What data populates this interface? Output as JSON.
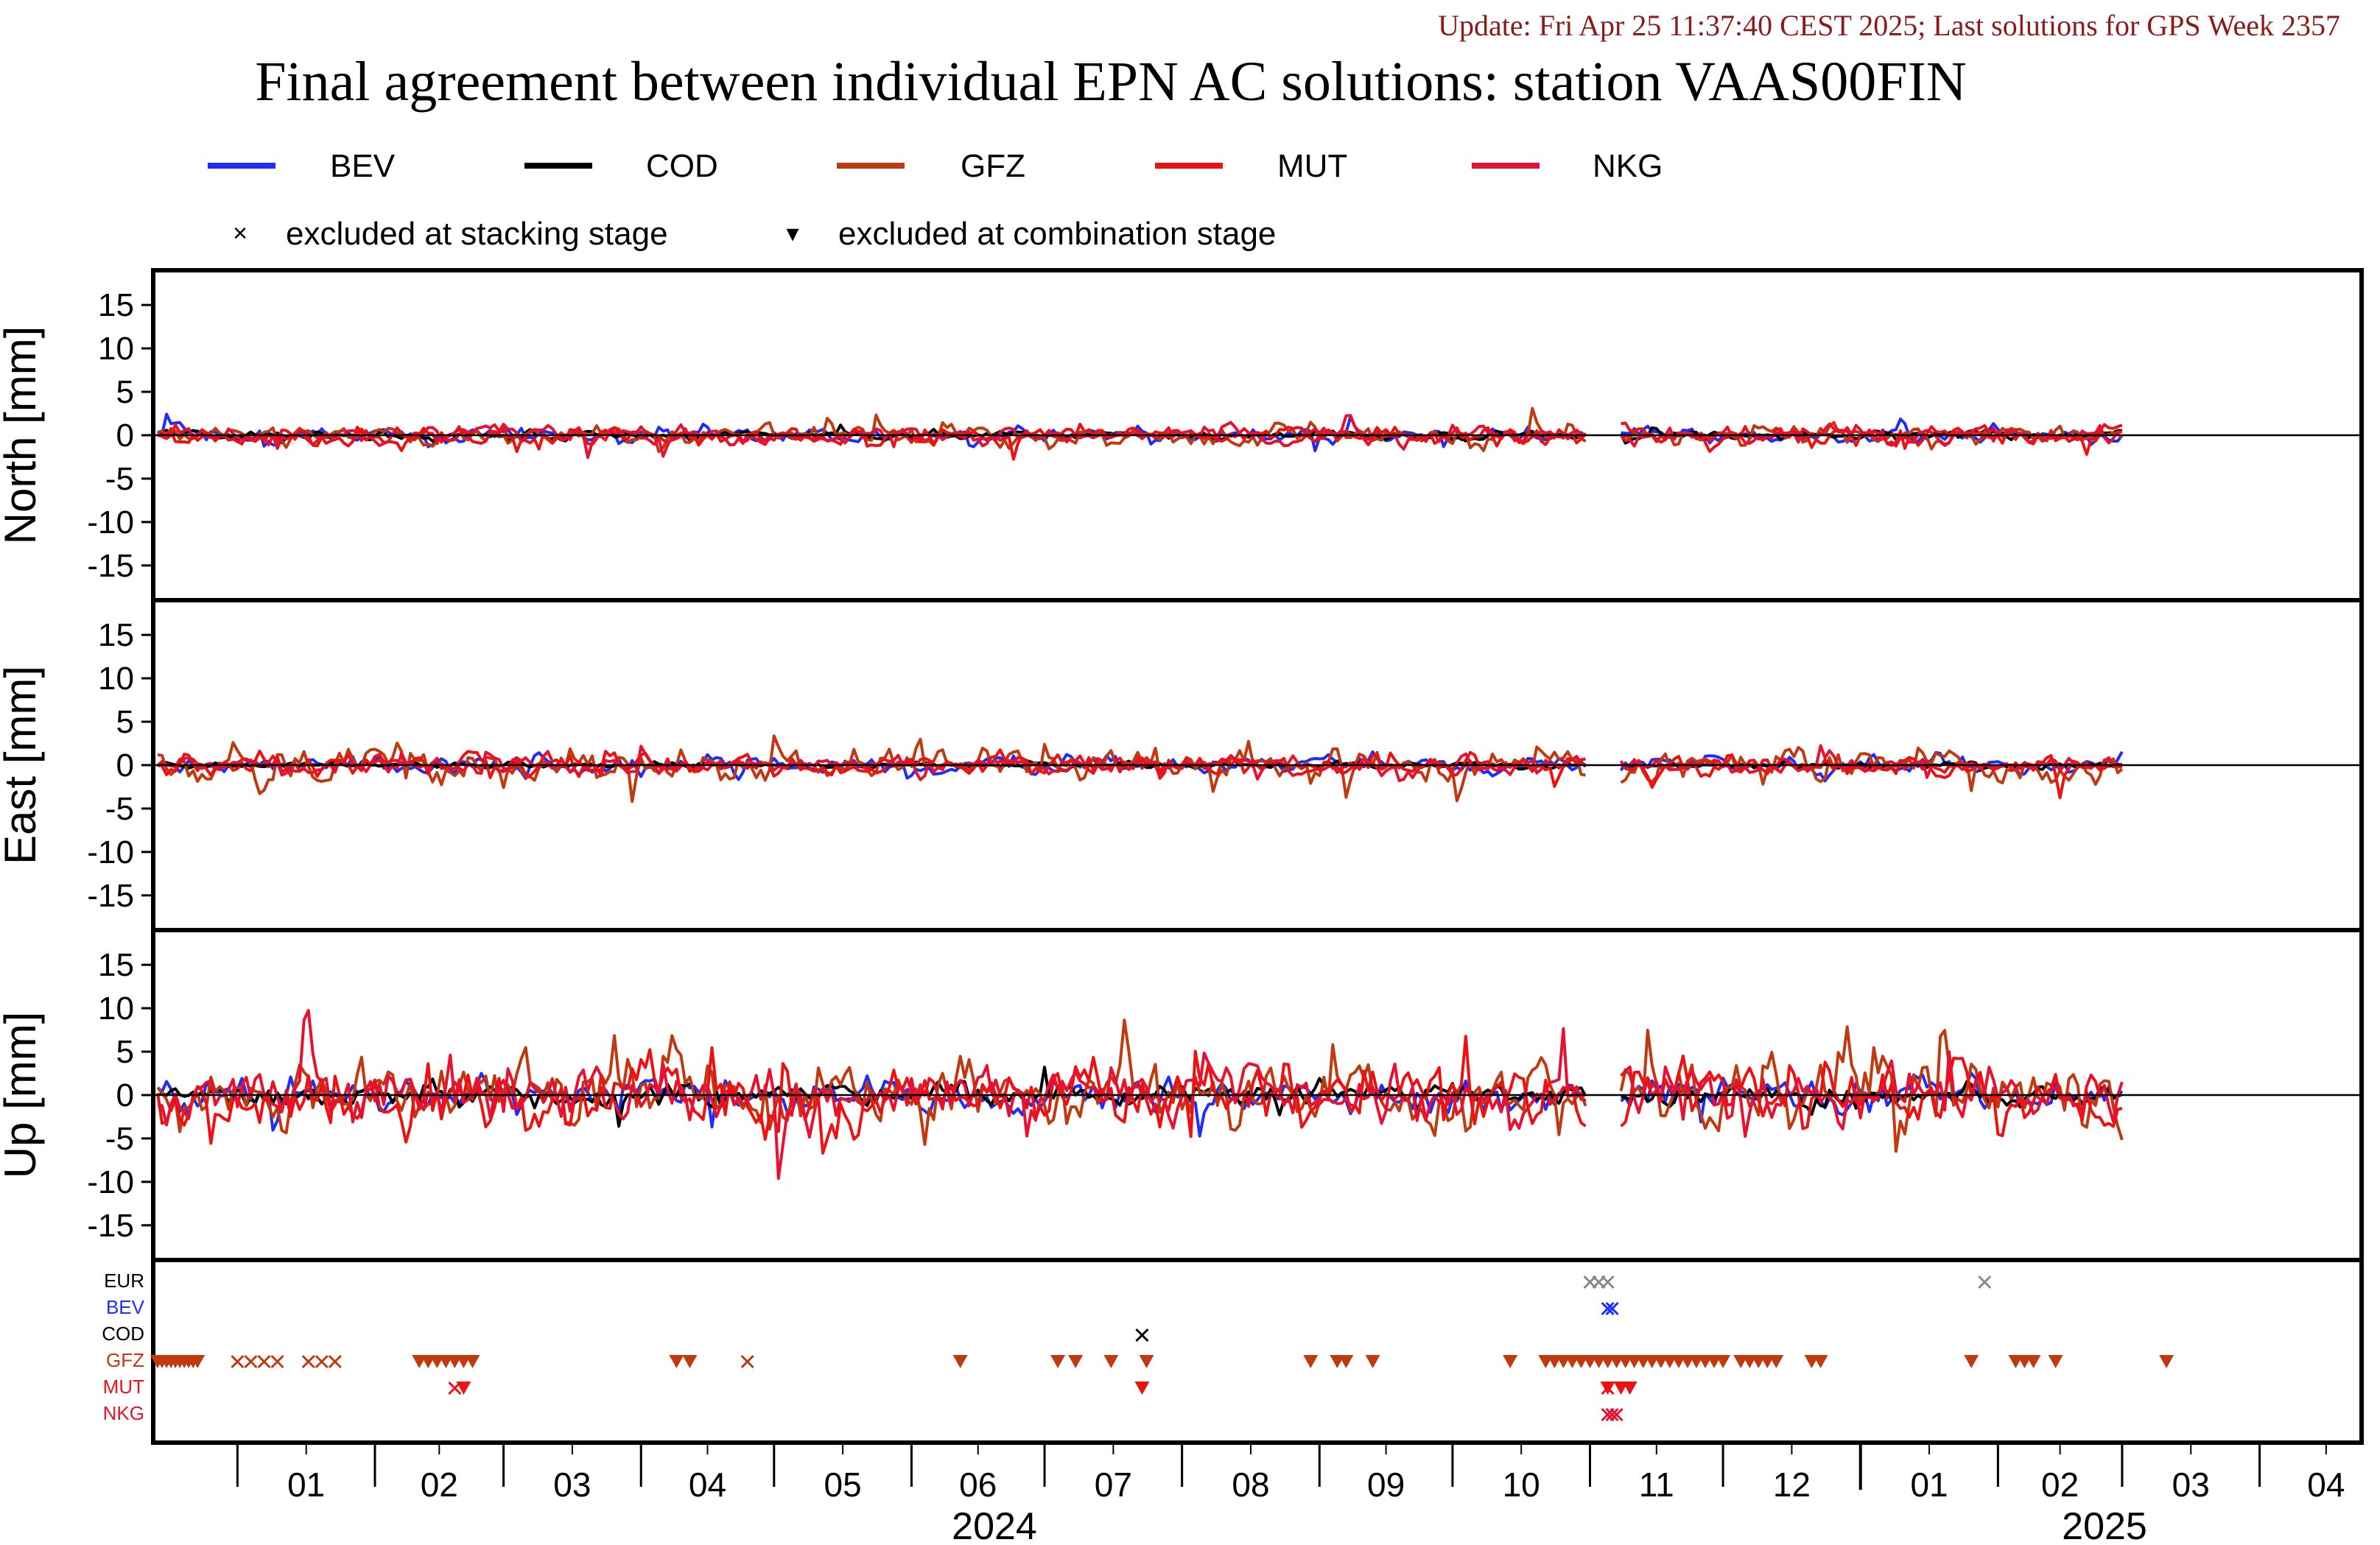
{
  "header": {
    "update": "Update: Fri Apr 25 11:37:40 CEST 2025; Last solutions for GPS Week 2357",
    "title": "Final agreement between individual EPN AC solutions: station VAAS00FIN"
  },
  "legend": {
    "series": [
      {
        "name": "BEV",
        "color": "#1f2bff"
      },
      {
        "name": "COD",
        "color": "#000000"
      },
      {
        "name": "GFZ",
        "color": "#c0390f"
      },
      {
        "name": "MUT",
        "color": "#ee1111"
      },
      {
        "name": "NKG",
        "color": "#e8112f"
      }
    ],
    "markers": [
      {
        "symbol": "×",
        "label": "excluded at stacking stage"
      },
      {
        "symbol": "▾",
        "label": "excluded at combination stage"
      }
    ]
  },
  "chart_data": {
    "type": "line",
    "x_type": "date",
    "xlim": [
      "2023-12-13",
      "2025-04-24"
    ],
    "data_end": "2025-03-01",
    "gap": [
      "2024-11-01",
      "2024-11-08"
    ],
    "panels": [
      {
        "key": "north",
        "ylabel": "North [mm]",
        "ylim": [
          -19,
          19
        ],
        "yticks": [
          15,
          10,
          5,
          0,
          -5,
          -10,
          -15
        ],
        "typical_spread_mm": {
          "BEV": 0.7,
          "COD": 0.4,
          "GFZ": 0.9,
          "MUT": 0.9,
          "NKG": 0.8
        }
      },
      {
        "key": "east",
        "ylabel": "East [mm]",
        "ylim": [
          -19,
          19
        ],
        "yticks": [
          15,
          10,
          5,
          0,
          -5,
          -10,
          -15
        ],
        "typical_spread_mm": {
          "BEV": 0.8,
          "COD": 0.3,
          "GFZ": 1.6,
          "MUT": 1.0,
          "NKG": 0.8
        }
      },
      {
        "key": "up",
        "ylabel": "Up [mm]",
        "ylim": [
          -19,
          19
        ],
        "yticks": [
          15,
          10,
          5,
          0,
          -5,
          -10,
          -15
        ],
        "typical_spread_mm": {
          "BEV": 1.6,
          "COD": 1.1,
          "GFZ": 3.0,
          "MUT": 3.0,
          "NKG": 2.6
        }
      }
    ],
    "exclusions": {
      "rows": [
        {
          "label": "EUR",
          "color": "#000000"
        },
        {
          "label": "BEV",
          "color": "#1f2bff"
        },
        {
          "label": "COD",
          "color": "#000000"
        },
        {
          "label": "GFZ",
          "color": "#c0390f"
        },
        {
          "label": "MUT",
          "color": "#ee1111"
        },
        {
          "label": "NKG",
          "color": "#e8112f"
        }
      ],
      "marks": [
        {
          "row": "EUR",
          "symbol": "x",
          "dates": [
            "2024-11-01",
            "2024-11-03",
            "2024-11-05",
            "2025-01-29"
          ]
        },
        {
          "row": "BEV",
          "symbol": "x",
          "dates": [
            "2024-11-05",
            "2024-11-06"
          ]
        },
        {
          "row": "COD",
          "symbol": "x",
          "dates": [
            "2024-07-23"
          ]
        },
        {
          "row": "GFZ",
          "symbol": "tri",
          "dates": [
            "2023-12-14",
            "2023-12-15",
            "2023-12-16",
            "2023-12-17",
            "2023-12-18",
            "2023-12-19",
            "2023-12-20",
            "2023-12-21",
            "2023-12-22",
            "2023-12-23",
            "2024-02-11",
            "2024-02-13",
            "2024-02-15",
            "2024-02-17",
            "2024-02-19",
            "2024-02-21",
            "2024-02-23",
            "2024-04-09",
            "2024-04-12",
            "2024-06-12",
            "2024-07-04",
            "2024-07-08",
            "2024-07-16",
            "2024-07-24",
            "2024-08-30",
            "2024-09-05",
            "2024-09-07",
            "2024-09-13",
            "2024-10-14",
            "2024-10-22",
            "2024-10-24",
            "2024-10-26",
            "2024-10-28",
            "2024-10-30",
            "2024-11-01",
            "2024-11-03",
            "2024-11-05",
            "2024-11-07",
            "2024-11-09",
            "2024-11-11",
            "2024-11-13",
            "2024-11-15",
            "2024-11-17",
            "2024-11-19",
            "2024-11-21",
            "2024-11-23",
            "2024-11-25",
            "2024-11-27",
            "2024-11-29",
            "2024-12-01",
            "2024-12-05",
            "2024-12-07",
            "2024-12-09",
            "2024-12-11",
            "2024-12-13",
            "2024-12-21",
            "2024-12-23",
            "2025-01-26",
            "2025-02-05",
            "2025-02-07",
            "2025-02-09",
            "2025-02-14",
            "2025-03-11"
          ]
        },
        {
          "row": "GFZ",
          "symbol": "x",
          "dates": [
            "2024-01-01",
            "2024-01-04",
            "2024-01-07",
            "2024-01-10",
            "2024-01-17",
            "2024-01-20",
            "2024-01-23",
            "2024-04-25"
          ]
        },
        {
          "row": "MUT",
          "symbol": "tri",
          "dates": [
            "2024-02-21",
            "2024-07-23",
            "2024-11-05",
            "2024-11-08",
            "2024-11-10"
          ]
        },
        {
          "row": "MUT",
          "symbol": "x",
          "dates": [
            "2024-02-19",
            "2024-11-05"
          ]
        },
        {
          "row": "NKG",
          "symbol": "x",
          "dates": [
            "2024-11-05",
            "2024-11-06",
            "2024-11-07"
          ]
        }
      ]
    },
    "xaxis": {
      "month_labels": [
        "01",
        "02",
        "03",
        "04",
        "05",
        "06",
        "07",
        "08",
        "09",
        "10",
        "11",
        "12",
        "01",
        "02",
        "03",
        "04"
      ],
      "month_starts": [
        "2024-01-01",
        "2024-02-01",
        "2024-03-01",
        "2024-04-01",
        "2024-05-01",
        "2024-06-01",
        "2024-07-01",
        "2024-08-01",
        "2024-09-01",
        "2024-10-01",
        "2024-11-01",
        "2024-12-01",
        "2025-01-01",
        "2025-02-01",
        "2025-03-01",
        "2025-04-01"
      ],
      "year_labels": [
        "2024",
        "2025"
      ]
    }
  }
}
